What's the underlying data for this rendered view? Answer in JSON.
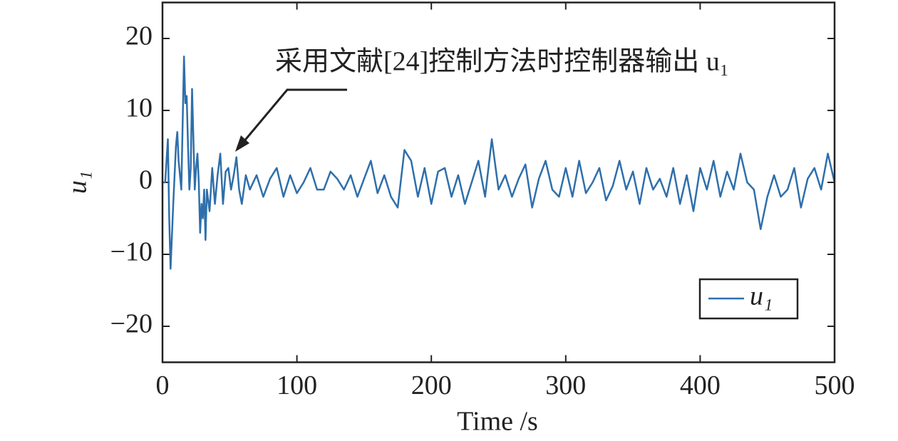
{
  "chart_data": {
    "type": "line",
    "annotation": "采用文献[24]控制方法时控制器输出 u₁",
    "xlabel": "Time /s",
    "ylabel": "u₁",
    "legend": "lower right",
    "xlim": [
      0,
      500
    ],
    "xticks": [
      0,
      100,
      200,
      300,
      400,
      500
    ],
    "ylim": [
      -25,
      25
    ],
    "yticks": [
      {
        "value": -20,
        "label": "−20"
      },
      {
        "value": -10,
        "label": "−10"
      },
      0,
      10,
      20
    ],
    "x": [
      0,
      2,
      4,
      5,
      6,
      8,
      10,
      11,
      12,
      14,
      16,
      17,
      18,
      19,
      20,
      21,
      22,
      23,
      24,
      25,
      26,
      27,
      28,
      29,
      30,
      31,
      32,
      33,
      35,
      37,
      39,
      41,
      43,
      45,
      47,
      49,
      51,
      53,
      55,
      57,
      59,
      62,
      65,
      70,
      75,
      80,
      85,
      90,
      95,
      100,
      105,
      110,
      115,
      120,
      125,
      130,
      135,
      140,
      145,
      150,
      155,
      160,
      165,
      170,
      175,
      180,
      185,
      190,
      195,
      200,
      205,
      210,
      215,
      220,
      225,
      230,
      235,
      240,
      245,
      250,
      255,
      260,
      265,
      270,
      275,
      280,
      285,
      290,
      295,
      300,
      305,
      310,
      315,
      320,
      325,
      330,
      335,
      340,
      345,
      350,
      355,
      360,
      365,
      370,
      375,
      380,
      385,
      390,
      395,
      400,
      405,
      410,
      415,
      420,
      425,
      430,
      435,
      440,
      445,
      450,
      455,
      460,
      465,
      470,
      475,
      480,
      485,
      490,
      495,
      500
    ],
    "series": [
      {
        "name": "u₁",
        "color": "#2e6fab",
        "values": [
          0,
          0,
          6,
          -5,
          -12,
          -3,
          5,
          7,
          3,
          -1,
          17.5,
          11,
          12,
          5,
          -1,
          2,
          13,
          6,
          -1,
          2,
          4,
          0,
          -7,
          -3,
          -5,
          -1,
          -8,
          -1,
          -4,
          2,
          -3,
          1,
          4,
          -3,
          1.5,
          2,
          -1,
          1,
          3.5,
          -1,
          -3,
          1,
          -1,
          1,
          -2,
          0.5,
          2,
          -2,
          1,
          -1.5,
          0,
          2,
          -1,
          -1,
          1.5,
          0.5,
          -1,
          1,
          -2,
          0.5,
          3,
          -1.5,
          1,
          -2,
          -3.5,
          4.5,
          3,
          -2,
          2,
          -3,
          1.5,
          2,
          -2,
          1,
          -3,
          0,
          3,
          -2,
          6,
          -1,
          1,
          -2,
          0.5,
          2.5,
          -3.5,
          0.5,
          3,
          -1,
          -2,
          2,
          -2,
          3,
          -1.5,
          0,
          2,
          -2.5,
          -0.5,
          3,
          -1,
          1.5,
          -3,
          2,
          -1,
          0.5,
          -2,
          2,
          -3,
          1,
          -4,
          2,
          -1,
          3,
          -2,
          1.5,
          -1,
          4,
          0,
          -1,
          -6.5,
          -2,
          1,
          -2,
          -1,
          2,
          -3.5,
          0.5,
          2,
          -1,
          4,
          0
        ]
      }
    ]
  }
}
